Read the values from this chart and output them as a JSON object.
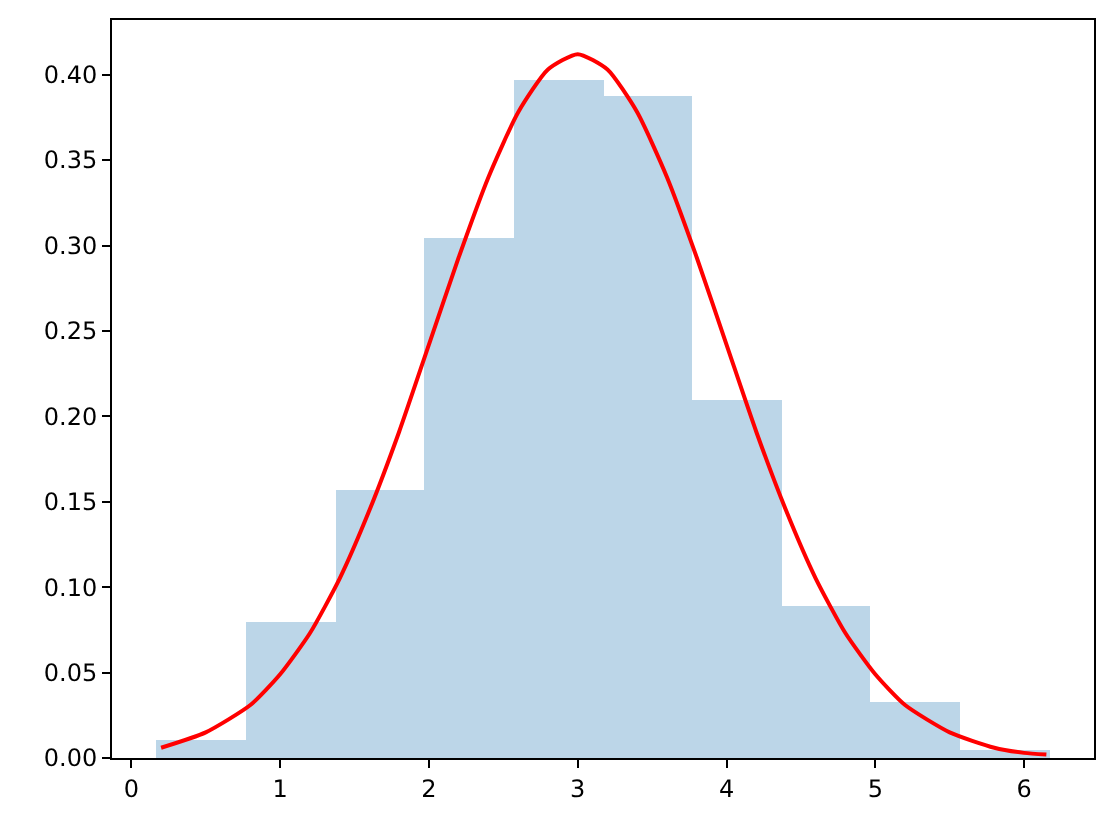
{
  "chart_data": {
    "type": "histogram",
    "series": [
      {
        "type": "histogram",
        "bins": [
          0.17,
          0.77,
          1.37,
          1.97,
          2.57,
          3.17,
          3.77,
          4.37,
          4.97,
          5.57,
          6.17
        ],
        "values": [
          0.01,
          0.08,
          0.157,
          0.304,
          0.397,
          0.388,
          0.21,
          0.089,
          0.033,
          0.005
        ],
        "color": "#bcd6e8"
      },
      {
        "type": "line",
        "color": "#ff0000",
        "x": [
          0.2,
          0.5,
          0.8,
          1.0,
          1.2,
          1.4,
          1.6,
          1.8,
          2.0,
          2.2,
          2.4,
          2.6,
          2.8,
          3.0,
          3.2,
          3.4,
          3.6,
          3.8,
          4.0,
          4.2,
          4.4,
          4.6,
          4.8,
          5.0,
          5.2,
          5.5,
          5.8,
          6.0,
          6.15
        ],
        "values": [
          0.006,
          0.015,
          0.031,
          0.049,
          0.073,
          0.105,
          0.145,
          0.191,
          0.242,
          0.293,
          0.34,
          0.378,
          0.403,
          0.412,
          0.403,
          0.378,
          0.34,
          0.293,
          0.242,
          0.191,
          0.145,
          0.105,
          0.073,
          0.049,
          0.031,
          0.015,
          0.006,
          0.003,
          0.002
        ]
      }
    ],
    "xlim": [
      -0.13,
      6.47
    ],
    "ylim": [
      0,
      0.432
    ],
    "xticks": [
      0,
      1,
      2,
      3,
      4,
      5,
      6
    ],
    "yticks": [
      {
        "value": 0,
        "label": "0.00"
      },
      {
        "value": 0.05,
        "label": "0.05"
      },
      {
        "value": 0.1,
        "label": "0.10"
      },
      {
        "value": 0.15,
        "label": "0.15"
      },
      {
        "value": 0.2,
        "label": "0.20"
      },
      {
        "value": 0.25,
        "label": "0.25"
      },
      {
        "value": 0.3,
        "label": "0.30"
      },
      {
        "value": 0.35,
        "label": "0.35"
      },
      {
        "value": 0.4,
        "label": "0.40"
      }
    ],
    "grid": false
  }
}
